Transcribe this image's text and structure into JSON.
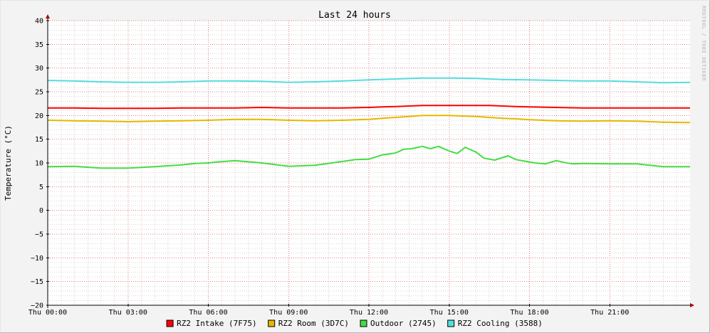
{
  "chart_data": {
    "type": "line",
    "title": "Last 24 hours",
    "ylabel": "Temperature (°C)",
    "watermark": "RRDTOOL / TOBI OETIKER",
    "ylim": [
      -20,
      40
    ],
    "yticks": [
      40,
      35,
      30,
      25,
      20,
      15,
      10,
      5,
      0,
      -5,
      -10,
      -15,
      -20
    ],
    "xlim_hours": [
      0,
      24
    ],
    "xticks": [
      {
        "hour": 0,
        "label": "Thu 00:00"
      },
      {
        "hour": 3,
        "label": "Thu 03:00"
      },
      {
        "hour": 6,
        "label": "Thu 06:00"
      },
      {
        "hour": 9,
        "label": "Thu 09:00"
      },
      {
        "hour": 12,
        "label": "Thu 12:00"
      },
      {
        "hour": 15,
        "label": "Thu 15:00"
      },
      {
        "hour": 18,
        "label": "Thu 18:00"
      },
      {
        "hour": 21,
        "label": "Thu 21:00"
      }
    ],
    "grid": true,
    "legend_position": "bottom",
    "series": [
      {
        "name": "RZ2 Intake (7F75)",
        "color": "#ff0000",
        "x": [
          0,
          1,
          2,
          3,
          4,
          5,
          6,
          7,
          8,
          9,
          10,
          11,
          12,
          12.5,
          13,
          13.5,
          14,
          14.5,
          15,
          15.5,
          16,
          16.5,
          17,
          17.5,
          18,
          19,
          20,
          21,
          22,
          23,
          24
        ],
        "y": [
          21.6,
          21.6,
          21.5,
          21.5,
          21.5,
          21.6,
          21.6,
          21.6,
          21.7,
          21.6,
          21.6,
          21.6,
          21.7,
          21.8,
          21.9,
          22.0,
          22.1,
          22.1,
          22.1,
          22.1,
          22.1,
          22.1,
          22.0,
          21.9,
          21.8,
          21.7,
          21.6,
          21.6,
          21.6,
          21.6,
          21.6
        ]
      },
      {
        "name": "RZ2 Room (3D7C)",
        "color": "#e6b800",
        "x": [
          0,
          1,
          2,
          3,
          4,
          5,
          6,
          7,
          8,
          9,
          10,
          11,
          12,
          12.5,
          13,
          13.5,
          14,
          14.5,
          15,
          15.5,
          16,
          16.5,
          17,
          17.5,
          18,
          19,
          20,
          21,
          22,
          23,
          24
        ],
        "y": [
          19.0,
          18.9,
          18.8,
          18.7,
          18.8,
          18.9,
          19.0,
          19.2,
          19.2,
          19.0,
          18.9,
          19.0,
          19.2,
          19.4,
          19.6,
          19.8,
          20.0,
          20.0,
          20.0,
          19.9,
          19.8,
          19.6,
          19.4,
          19.3,
          19.1,
          18.9,
          18.8,
          18.9,
          18.8,
          18.6,
          18.5
        ]
      },
      {
        "name": "Outdoor (2745)",
        "color": "#44dd44",
        "x": [
          0,
          1,
          2,
          3,
          4,
          5,
          5.5,
          6,
          6.3,
          7,
          8,
          9,
          10,
          11,
          11.5,
          12,
          12.5,
          13,
          13.3,
          13.6,
          14,
          14.3,
          14.6,
          15,
          15.3,
          15.6,
          16,
          16.3,
          16.7,
          17.2,
          17.5,
          17.9,
          18.2,
          18.6,
          19.0,
          19.3,
          19.6,
          20,
          21,
          22,
          23,
          24
        ],
        "y": [
          9.2,
          9.3,
          8.9,
          8.9,
          9.2,
          9.6,
          9.9,
          10.0,
          10.2,
          10.5,
          10.0,
          9.3,
          9.5,
          10.3,
          10.7,
          10.8,
          11.7,
          12.1,
          12.9,
          13.0,
          13.5,
          13.0,
          13.5,
          12.5,
          12.0,
          13.3,
          12.3,
          11.0,
          10.6,
          11.5,
          10.7,
          10.3,
          10.0,
          9.8,
          10.5,
          10.1,
          9.8,
          9.9,
          9.8,
          9.8,
          9.2,
          9.2
        ]
      },
      {
        "name": "RZ2 Cooling (3588)",
        "color": "#55dddd",
        "x": [
          0,
          1,
          2,
          3,
          4,
          5,
          6,
          7,
          8,
          9,
          10,
          11,
          12,
          13,
          14,
          15,
          16,
          17,
          18,
          19,
          20,
          21,
          22,
          23,
          24
        ],
        "y": [
          27.4,
          27.3,
          27.1,
          27.0,
          27.0,
          27.1,
          27.3,
          27.3,
          27.2,
          27.0,
          27.1,
          27.3,
          27.5,
          27.7,
          27.9,
          27.9,
          27.8,
          27.6,
          27.5,
          27.4,
          27.3,
          27.3,
          27.1,
          26.9,
          27.0
        ]
      }
    ]
  }
}
